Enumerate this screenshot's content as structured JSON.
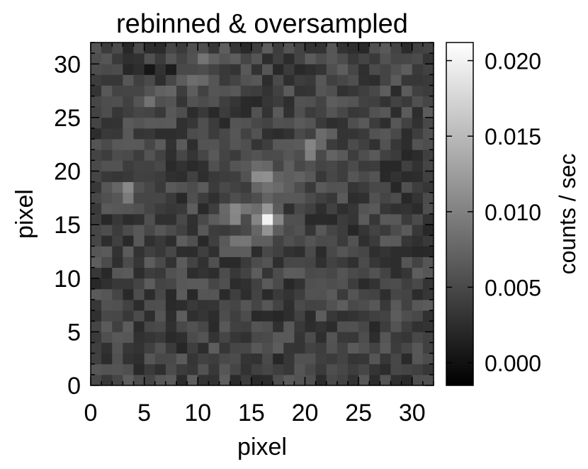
{
  "chart_data": {
    "type": "heatmap",
    "title": "rebinned & oversampled",
    "xlabel": "pixel",
    "ylabel": "pixel",
    "xlim": [
      0,
      32
    ],
    "ylim": [
      0,
      32
    ],
    "x_ticks": [
      "0",
      "5",
      "10",
      "15",
      "20",
      "25",
      "30"
    ],
    "x_tick_values": [
      0,
      5,
      10,
      15,
      20,
      25,
      30
    ],
    "y_ticks": [
      "0",
      "5",
      "10",
      "15",
      "20",
      "25",
      "30"
    ],
    "y_tick_values": [
      0,
      5,
      10,
      15,
      20,
      25,
      30
    ],
    "colormap": "grayscale",
    "colorbar": {
      "label": "counts / sec",
      "range": [
        -0.0015,
        0.0212
      ],
      "ticks": [
        "0.000",
        "0.005",
        "0.010",
        "0.015",
        "0.020"
      ],
      "tick_values": [
        0.0,
        0.005,
        0.01,
        0.015,
        0.02
      ]
    },
    "grid": false,
    "rows": 32,
    "cols": 32,
    "noise_seed": 7,
    "values": []
  }
}
